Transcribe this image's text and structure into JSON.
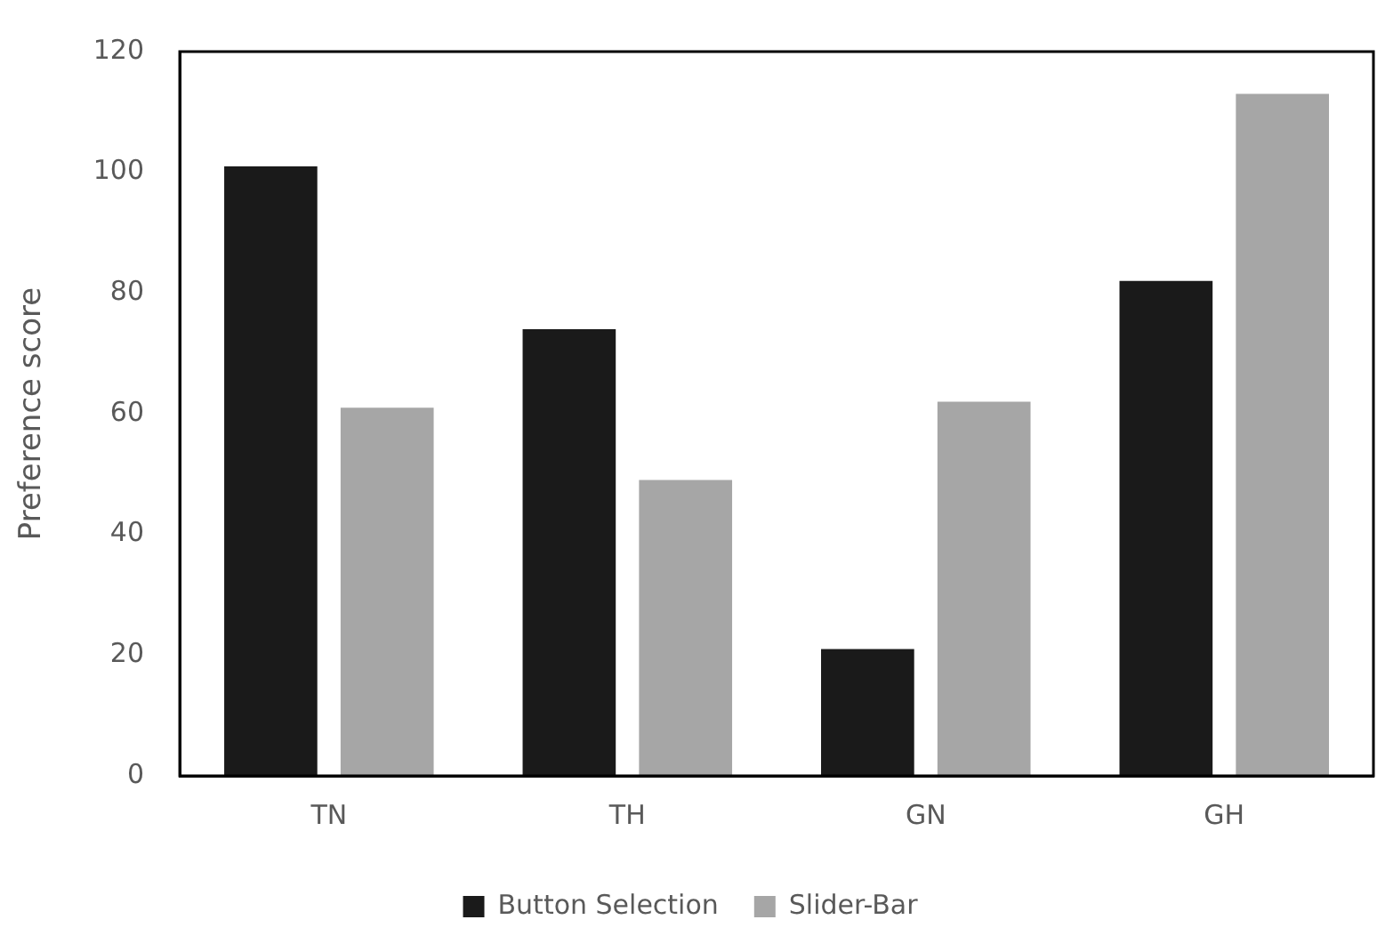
{
  "chart_data": {
    "type": "bar",
    "ylabel": "Preference score",
    "categories": [
      "TN",
      "TH",
      "GN",
      "GH"
    ],
    "series": [
      {
        "name": "Button Selection",
        "color": "#1a1a1a",
        "values": [
          101,
          74,
          21,
          82
        ]
      },
      {
        "name": "Slider-Bar",
        "color": "#a6a6a6",
        "values": [
          61,
          49,
          62,
          113
        ]
      }
    ],
    "ylim": [
      0,
      120
    ],
    "yticks": [
      0,
      20,
      40,
      60,
      80,
      100,
      120
    ],
    "grid": false,
    "legend": "bottom"
  }
}
